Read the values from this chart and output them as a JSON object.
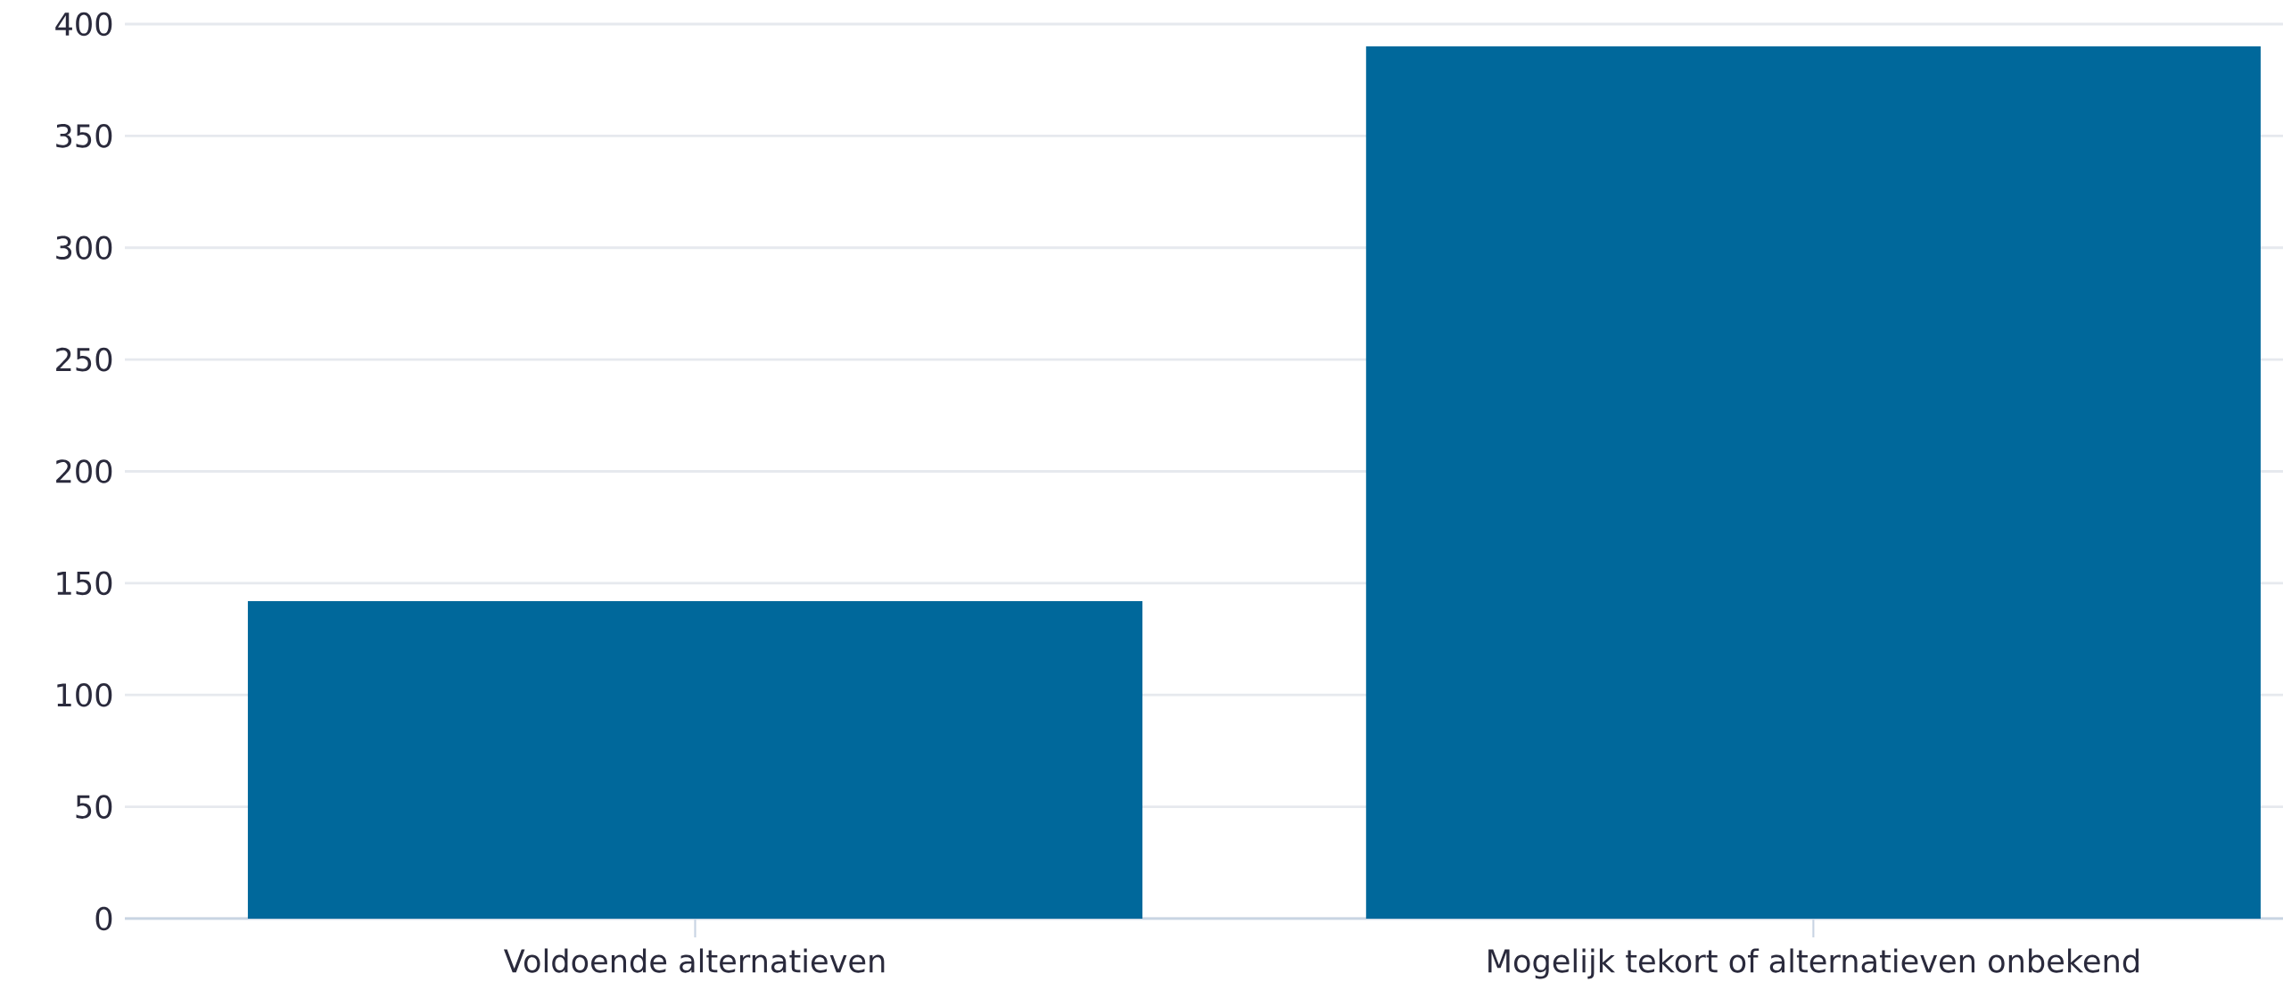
{
  "chart_data": {
    "type": "bar",
    "categories": [
      "Voldoende alternatieven",
      "Mogelijk tekort of alternatieven onbekend"
    ],
    "values": [
      142,
      390
    ],
    "color": "#00689b",
    "ylim": [
      0,
      400
    ],
    "yticks": [
      0,
      50,
      100,
      150,
      200,
      250,
      300,
      350,
      400
    ],
    "grid": "y"
  }
}
